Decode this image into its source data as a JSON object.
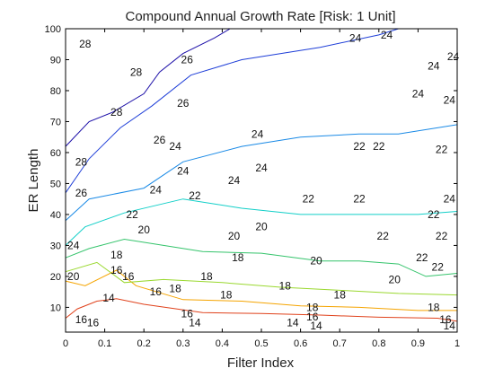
{
  "chart_data": {
    "type": "contour",
    "title": "Compound Annual Growth Rate [Risk: 1 Unit]",
    "xlabel": "Filter Index",
    "ylabel": "ER Length",
    "xlim": [
      0,
      1
    ],
    "ylim": [
      2,
      100
    ],
    "x_ticks": [
      "0",
      "0.1",
      "0.2",
      "0.3",
      "0.4",
      "0.5",
      "0.6",
      "0.7",
      "0.8",
      "0.9",
      "1"
    ],
    "y_ticks": [
      "10",
      "20",
      "30",
      "40",
      "50",
      "60",
      "70",
      "80",
      "90",
      "100"
    ],
    "grid": false,
    "levels": [
      {
        "value": 14,
        "color": "#e0421c",
        "points": [
          [
            0.0,
            6.5
          ],
          [
            0.03,
            9.5
          ],
          [
            0.08,
            12
          ],
          [
            0.13,
            12.8
          ],
          [
            0.2,
            11
          ],
          [
            0.35,
            8.3
          ],
          [
            0.5,
            8
          ],
          [
            0.65,
            7.5
          ],
          [
            0.8,
            6.8
          ],
          [
            0.95,
            6.5
          ],
          [
            1.0,
            5.5
          ]
        ]
      },
      {
        "value": 16,
        "color": "#f5a400",
        "points": [
          [
            0.0,
            18.5
          ],
          [
            0.05,
            17
          ],
          [
            0.13,
            22
          ],
          [
            0.18,
            17
          ],
          [
            0.3,
            12.5
          ],
          [
            0.45,
            12
          ],
          [
            0.6,
            10.5
          ],
          [
            0.75,
            10
          ],
          [
            0.9,
            9
          ],
          [
            1.0,
            9
          ]
        ]
      },
      {
        "value": 18,
        "color": "#9ad82f",
        "points": [
          [
            0.0,
            21.5
          ],
          [
            0.08,
            24.5
          ],
          [
            0.15,
            18
          ],
          [
            0.25,
            19
          ],
          [
            0.4,
            18
          ],
          [
            0.55,
            16.5
          ],
          [
            0.7,
            15.5
          ],
          [
            0.85,
            14.5
          ],
          [
            1.0,
            14
          ]
        ]
      },
      {
        "value": 20,
        "color": "#35c46c",
        "points": [
          [
            0.0,
            26
          ],
          [
            0.06,
            29
          ],
          [
            0.15,
            32
          ],
          [
            0.25,
            30
          ],
          [
            0.35,
            28
          ],
          [
            0.5,
            27.5
          ],
          [
            0.65,
            25
          ],
          [
            0.75,
            25
          ],
          [
            0.85,
            24
          ],
          [
            0.92,
            20
          ],
          [
            1.0,
            21
          ]
        ]
      },
      {
        "value": 22,
        "color": "#12cfc8",
        "points": [
          [
            0.0,
            30
          ],
          [
            0.05,
            36
          ],
          [
            0.15,
            40.5
          ],
          [
            0.3,
            45
          ],
          [
            0.45,
            42
          ],
          [
            0.6,
            40
          ],
          [
            0.75,
            40
          ],
          [
            0.9,
            40
          ],
          [
            1.0,
            41
          ]
        ]
      },
      {
        "value": 24,
        "color": "#1a8ae6",
        "points": [
          [
            0.0,
            38
          ],
          [
            0.06,
            45
          ],
          [
            0.2,
            48.5
          ],
          [
            0.3,
            57
          ],
          [
            0.45,
            62
          ],
          [
            0.6,
            65
          ],
          [
            0.75,
            66
          ],
          [
            0.85,
            66
          ],
          [
            1.0,
            69
          ]
        ]
      },
      {
        "value": 26,
        "color": "#1f3fd8",
        "points": [
          [
            0.0,
            47
          ],
          [
            0.06,
            58
          ],
          [
            0.14,
            68
          ],
          [
            0.22,
            75
          ],
          [
            0.32,
            85
          ],
          [
            0.45,
            90
          ],
          [
            0.65,
            94
          ],
          [
            0.8,
            98
          ],
          [
            0.85,
            100
          ]
        ]
      },
      {
        "value": 28,
        "color": "#1c0fa8",
        "points": [
          [
            0.0,
            62
          ],
          [
            0.06,
            70
          ],
          [
            0.12,
            73
          ],
          [
            0.2,
            79
          ],
          [
            0.24,
            86
          ],
          [
            0.3,
            92
          ],
          [
            0.38,
            97
          ],
          [
            0.42,
            100
          ]
        ]
      }
    ],
    "contour_labels": [
      {
        "text": "28",
        "x": 0.05,
        "y": 95
      },
      {
        "text": "28",
        "x": 0.18,
        "y": 86
      },
      {
        "text": "26",
        "x": 0.31,
        "y": 90
      },
      {
        "text": "28",
        "x": 0.13,
        "y": 73
      },
      {
        "text": "26",
        "x": 0.3,
        "y": 76
      },
      {
        "text": "28",
        "x": 0.04,
        "y": 57
      },
      {
        "text": "26",
        "x": 0.24,
        "y": 64
      },
      {
        "text": "24",
        "x": 0.28,
        "y": 62
      },
      {
        "text": "26",
        "x": 0.04,
        "y": 47
      },
      {
        "text": "24",
        "x": 0.23,
        "y": 48
      },
      {
        "text": "24",
        "x": 0.3,
        "y": 54
      },
      {
        "text": "24",
        "x": 0.43,
        "y": 51
      },
      {
        "text": "24",
        "x": 0.5,
        "y": 55
      },
      {
        "text": "24",
        "x": 0.49,
        "y": 66
      },
      {
        "text": "22",
        "x": 0.33,
        "y": 46
      },
      {
        "text": "22",
        "x": 0.17,
        "y": 40
      },
      {
        "text": "24",
        "x": 0.02,
        "y": 30
      },
      {
        "text": "22",
        "x": 0.62,
        "y": 45
      },
      {
        "text": "22",
        "x": 0.75,
        "y": 62
      },
      {
        "text": "22",
        "x": 0.8,
        "y": 62
      },
      {
        "text": "22",
        "x": 0.96,
        "y": 61
      },
      {
        "text": "22",
        "x": 0.75,
        "y": 45
      },
      {
        "text": "22",
        "x": 0.94,
        "y": 40
      },
      {
        "text": "22",
        "x": 0.81,
        "y": 33
      },
      {
        "text": "22",
        "x": 0.96,
        "y": 33
      },
      {
        "text": "22",
        "x": 0.91,
        "y": 26
      },
      {
        "text": "22",
        "x": 0.95,
        "y": 23
      },
      {
        "text": "24",
        "x": 0.98,
        "y": 45
      },
      {
        "text": "24",
        "x": 0.9,
        "y": 79
      },
      {
        "text": "24",
        "x": 0.98,
        "y": 77
      },
      {
        "text": "24",
        "x": 0.94,
        "y": 88
      },
      {
        "text": "24",
        "x": 0.99,
        "y": 91
      },
      {
        "text": "24",
        "x": 0.74,
        "y": 97
      },
      {
        "text": "24",
        "x": 0.82,
        "y": 98
      },
      {
        "text": "20",
        "x": 0.2,
        "y": 35
      },
      {
        "text": "20",
        "x": 0.43,
        "y": 33
      },
      {
        "text": "20",
        "x": 0.5,
        "y": 36
      },
      {
        "text": "20",
        "x": 0.64,
        "y": 25
      },
      {
        "text": "20",
        "x": 0.84,
        "y": 19
      },
      {
        "text": "20",
        "x": 0.02,
        "y": 20
      },
      {
        "text": "18",
        "x": 0.13,
        "y": 27
      },
      {
        "text": "18",
        "x": 0.44,
        "y": 26
      },
      {
        "text": "18",
        "x": 0.36,
        "y": 20
      },
      {
        "text": "18",
        "x": 0.56,
        "y": 17
      },
      {
        "text": "18",
        "x": 0.28,
        "y": 16
      },
      {
        "text": "18",
        "x": 0.41,
        "y": 14
      },
      {
        "text": "18",
        "x": 0.7,
        "y": 14
      },
      {
        "text": "18",
        "x": 0.63,
        "y": 10
      },
      {
        "text": "18",
        "x": 0.94,
        "y": 10
      },
      {
        "text": "16",
        "x": 0.13,
        "y": 22
      },
      {
        "text": "16",
        "x": 0.16,
        "y": 20
      },
      {
        "text": "16",
        "x": 0.23,
        "y": 15
      },
      {
        "text": "16",
        "x": 0.31,
        "y": 8
      },
      {
        "text": "16",
        "x": 0.63,
        "y": 7
      },
      {
        "text": "16",
        "x": 0.97,
        "y": 6
      },
      {
        "text": "16",
        "x": 0.04,
        "y": 6
      },
      {
        "text": "16",
        "x": 0.07,
        "y": 5
      },
      {
        "text": "14",
        "x": 0.11,
        "y": 13
      },
      {
        "text": "14",
        "x": 0.33,
        "y": 5
      },
      {
        "text": "14",
        "x": 0.58,
        "y": 5
      },
      {
        "text": "14",
        "x": 0.64,
        "y": 4
      },
      {
        "text": "14",
        "x": 0.98,
        "y": 4
      }
    ]
  }
}
